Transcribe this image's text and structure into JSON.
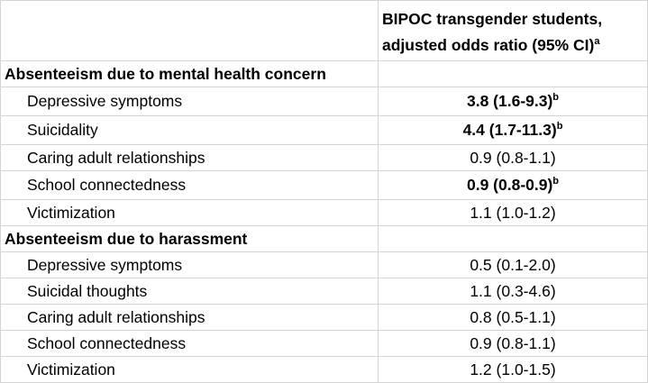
{
  "header": {
    "line1": "BIPOC transgender students,",
    "line2": "adjusted odds ratio (95% CI)",
    "line2_sup": "a"
  },
  "sections": [
    {
      "title": "Absenteeism due to mental health concern",
      "rows": [
        {
          "label": "Depressive symptoms",
          "value": "3.8 (1.6-9.3)",
          "sup": "b",
          "bold": true
        },
        {
          "label": "Suicidality",
          "value": "4.4 (1.7-11.3)",
          "sup": "b",
          "bold": true
        },
        {
          "label": "Caring adult relationships",
          "value": "0.9 (0.8-1.1)",
          "sup": "",
          "bold": false
        },
        {
          "label": "School connectedness",
          "value": "0.9 (0.8-0.9)",
          "sup": "b",
          "bold": true
        },
        {
          "label": "Victimization",
          "value": "1.1 (1.0-1.2)",
          "sup": "",
          "bold": false
        }
      ]
    },
    {
      "title": "Absenteeism due to harassment",
      "rows": [
        {
          "label": "Depressive symptoms",
          "value": "0.5 (0.1-2.0)",
          "sup": "",
          "bold": false
        },
        {
          "label": "Suicidal thoughts",
          "value": "1.1 (0.3-4.6)",
          "sup": "",
          "bold": false
        },
        {
          "label": "Caring adult relationships",
          "value": "0.8 (0.5-1.1)",
          "sup": "",
          "bold": false
        },
        {
          "label": "School connectedness",
          "value": "0.9 (0.8-1.1)",
          "sup": "",
          "bold": false
        },
        {
          "label": "Victimization",
          "value": "1.2 (1.0-1.5)",
          "sup": "",
          "bold": false
        }
      ]
    }
  ]
}
